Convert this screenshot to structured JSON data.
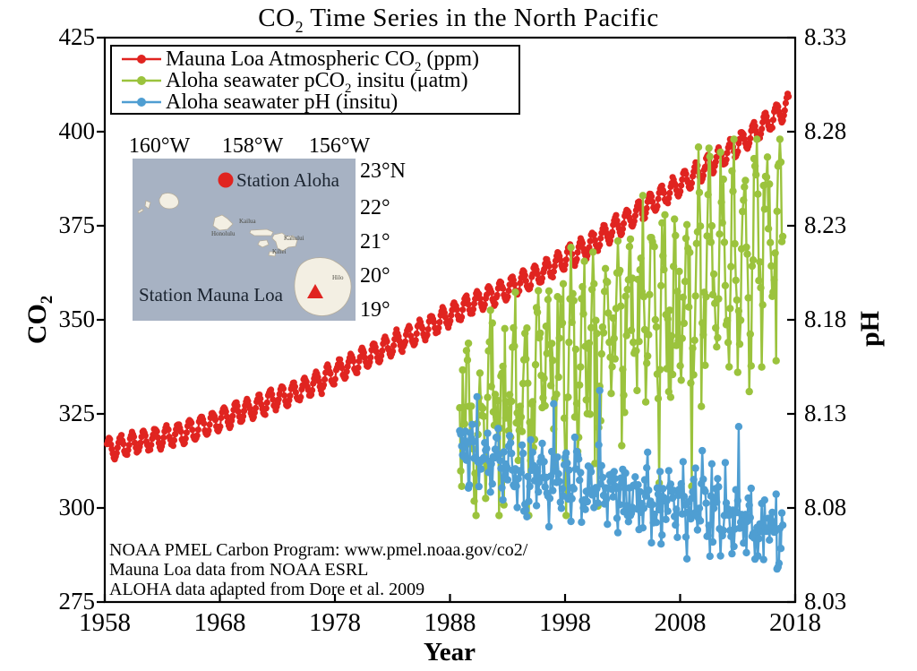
{
  "title": {
    "pre": "CO",
    "sub": "2",
    "post": " Time Series in the North Pacific"
  },
  "legend": {
    "items": [
      {
        "pre": "Mauna Loa Atmospheric CO",
        "sub": "2",
        "post": " (ppm)",
        "color_key": "co2_red"
      },
      {
        "pre": "Aloha seawater pCO",
        "sub": "2",
        "post": " insitu (μatm)",
        "color_key": "pco2_green"
      },
      {
        "pre": "Aloha seawater pH (insitu)",
        "sub": "",
        "post": "",
        "color_key": "ph_blue"
      }
    ]
  },
  "annotations": [
    "NOAA PMEL Carbon Program: www.pmel.noaa.gov/co2/",
    "Mauna Loa data from NOAA ESRL",
    "ALOHA data adapted from Dore et al. 2009"
  ],
  "map": {
    "lon_labels": [
      "160°W",
      "158°W",
      "156°W"
    ],
    "lat_labels": [
      "23°N",
      "22°",
      "21°",
      "20°",
      "19°"
    ],
    "station_aloha_label": "Station Aloha",
    "station_mauna_loa_label": "Station Mauna Loa",
    "island_labels": [
      "Kailua",
      "Honolulu",
      "Kahului",
      "Kihei",
      "Hilo"
    ]
  },
  "colors": {
    "co2_red": "#e02420",
    "pco2_green": "#9bc33d",
    "ph_blue": "#4f9ed2",
    "map_sea": "#a7b2c3",
    "island_fill": "#f3efe3",
    "island_stroke": "#b5ad9c",
    "map_text": "#1b2430",
    "axis": "#000000"
  },
  "chart_data": {
    "type": "line",
    "title": "CO2 Time Series in the North Pacific",
    "x_axis": {
      "label": "Year",
      "min": 1958,
      "max": 2018,
      "tick_values": [
        1958,
        1968,
        1978,
        1988,
        1998,
        2008,
        2018
      ],
      "tick_labels": [
        "1958",
        "1968",
        "1978",
        "1988",
        "1998",
        "2008",
        "2018"
      ]
    },
    "y_left": {
      "label": "CO2",
      "min": 275,
      "max": 425,
      "tick_values": [
        275,
        300,
        325,
        350,
        375,
        400,
        425
      ],
      "tick_labels": [
        "275",
        "300",
        "325",
        "350",
        "375",
        "400",
        "425"
      ]
    },
    "y_right": {
      "label": "pH",
      "min": 8.03,
      "max": 8.33,
      "tick_values": [
        8.03,
        8.08,
        8.13,
        8.18,
        8.23,
        8.28,
        8.33
      ],
      "tick_labels": [
        "8.03",
        "8.08",
        "8.13",
        "8.18",
        "8.23",
        "8.28",
        "8.33"
      ]
    },
    "grid": false,
    "legend_position": "top-left",
    "seed": 20090,
    "series": [
      {
        "name": "Mauna Loa Atmospheric CO2 (ppm)",
        "axis": "left",
        "color_key": "co2_red",
        "start": 1958.2,
        "end": 2017.5,
        "step_years": 0.0833,
        "trend_anchors": [
          [
            1958,
            315.3
          ],
          [
            1960,
            316.9
          ],
          [
            1965,
            320.0
          ],
          [
            1970,
            325.7
          ],
          [
            1975,
            331.2
          ],
          [
            1980,
            338.9
          ],
          [
            1985,
            346.3
          ],
          [
            1990,
            354.4
          ],
          [
            1995,
            360.9
          ],
          [
            2000,
            369.6
          ],
          [
            2005,
            379.9
          ],
          [
            2010,
            390.0
          ],
          [
            2015,
            401.0
          ],
          [
            2018,
            408.5
          ]
        ],
        "seasonal_amplitude": 2.8,
        "seasonal_phase": 0.37,
        "noise_sd": 0.25,
        "marker_radius": 3.6,
        "line_width": 2.2
      },
      {
        "name": "Aloha seawater pCO2 insitu (uatm)",
        "axis": "left",
        "color_key": "pco2_green",
        "start": 1988.85,
        "end": 2016.95,
        "step_years": 0.0833,
        "trend_anchors": [
          [
            1988.8,
            323
          ],
          [
            1992,
            329
          ],
          [
            1996,
            337
          ],
          [
            2000,
            344
          ],
          [
            2004,
            350
          ],
          [
            2008,
            357
          ],
          [
            2012,
            365
          ],
          [
            2017,
            374
          ]
        ],
        "seasonal_amplitude_start": 10,
        "seasonal_amplitude_end": 26,
        "seasonal_phase": 0.58,
        "noise_sd": 8,
        "dip_probability": 0.05,
        "dip_depth": [
          12,
          42
        ],
        "clamp": [
          298,
          398
        ],
        "marker_radius": 4.2,
        "line_width": 2.4
      },
      {
        "name": "Aloha seawater pH (insitu)",
        "axis": "right",
        "color_key": "ph_blue",
        "start": 1988.85,
        "end": 2016.95,
        "step_years": 0.0833,
        "trend_anchors": [
          [
            1988.8,
            8.109
          ],
          [
            1992,
            8.104
          ],
          [
            1996,
            8.097
          ],
          [
            2000,
            8.093
          ],
          [
            2004,
            8.087
          ],
          [
            2008,
            8.081
          ],
          [
            2012,
            8.074
          ],
          [
            2017,
            8.067
          ]
        ],
        "seasonal_amplitude": -0.0095,
        "seasonal_phase": 0.58,
        "noise_sd": 0.0085,
        "spike_probability": 0.035,
        "spike_height": [
          0.015,
          0.04
        ],
        "clamp": [
          8.043,
          8.152
        ],
        "marker_radius": 4.2,
        "line_width": 2.4
      }
    ]
  }
}
